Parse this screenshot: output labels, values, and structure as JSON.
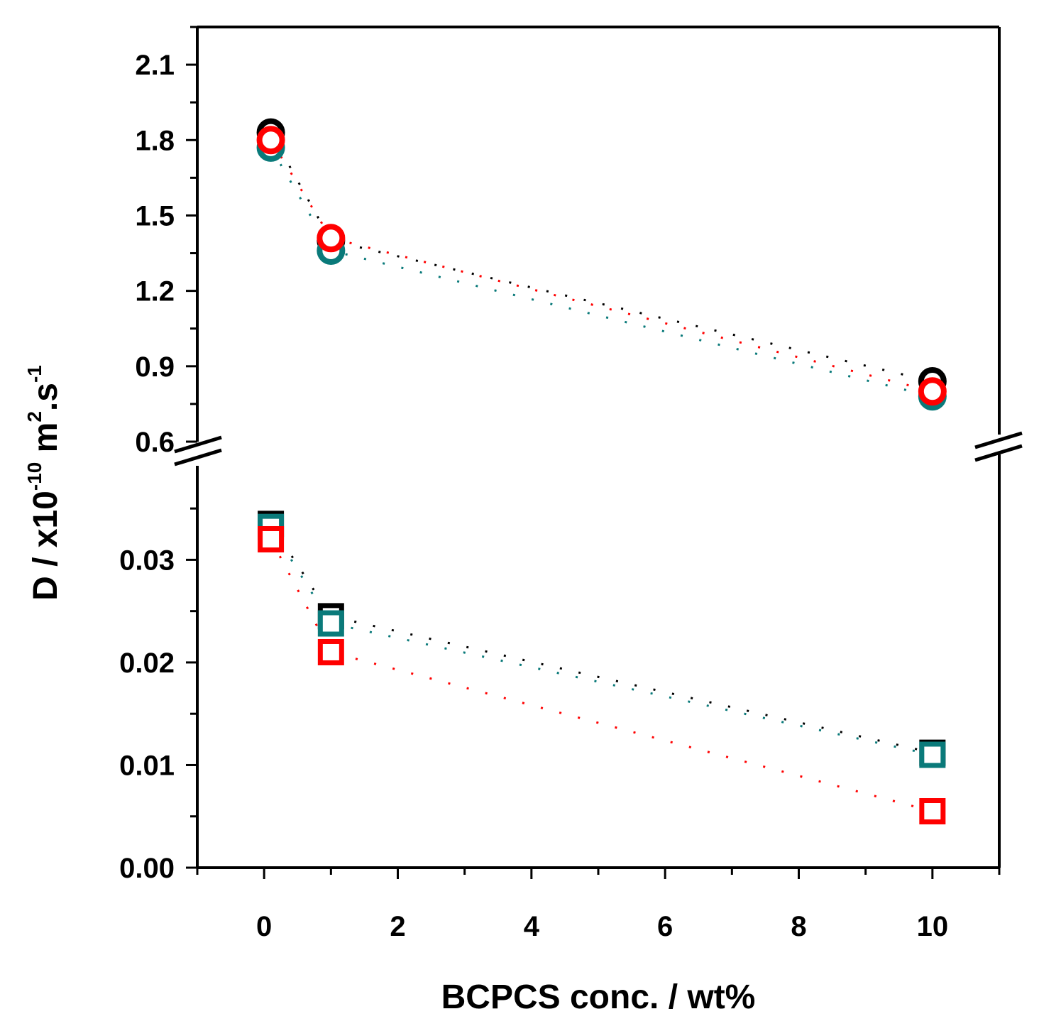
{
  "chart_data": {
    "type": "scatter",
    "xlabel": "BCPCS conc. / wt%",
    "ylabel": {
      "prefix": "D / x10",
      "exp1": "-10",
      "unit1": " m",
      "exp2": "2",
      "unit2": ".s",
      "exp3": "-1"
    },
    "xlim": [
      -1,
      11
    ],
    "x_ticks": [
      "0",
      "2",
      "4",
      "6",
      "8",
      "10"
    ],
    "x_tick_values": [
      0,
      2,
      4,
      6,
      8,
      10
    ],
    "y_break": true,
    "upper_ylim": [
      0.6,
      2.25
    ],
    "upper_ticks": [
      "0.6",
      "0.9",
      "1.2",
      "1.5",
      "1.8",
      "2.1"
    ],
    "upper_tick_values": [
      0.6,
      0.9,
      1.2,
      1.5,
      1.8,
      2.1
    ],
    "lower_ylim": [
      0.0,
      0.0375
    ],
    "lower_ticks": [
      "0.00",
      "0.01",
      "0.02",
      "0.03"
    ],
    "lower_tick_values": [
      0.0,
      0.01,
      0.02,
      0.03
    ],
    "x": [
      0.1,
      1,
      10
    ],
    "series": [
      {
        "name": "circle-black",
        "marker": "circle",
        "color": "#000000",
        "panel": "upper",
        "values": [
          1.83,
          1.4,
          0.84
        ]
      },
      {
        "name": "circle-teal",
        "marker": "circle",
        "color": "#0a7a7a",
        "panel": "upper",
        "values": [
          1.77,
          1.36,
          0.78
        ]
      },
      {
        "name": "circle-red",
        "marker": "circle",
        "color": "#ff0000",
        "panel": "upper",
        "values": [
          1.8,
          1.41,
          0.8
        ]
      },
      {
        "name": "square-black",
        "marker": "square",
        "color": "#000000",
        "panel": "lower",
        "values": [
          0.0335,
          0.0245,
          0.0112
        ]
      },
      {
        "name": "square-teal",
        "marker": "square",
        "color": "#0a7a7a",
        "panel": "lower",
        "values": [
          0.0332,
          0.0238,
          0.011
        ]
      },
      {
        "name": "square-red",
        "marker": "square",
        "color": "#ff0000",
        "panel": "lower",
        "values": [
          0.032,
          0.021,
          0.0055
        ]
      }
    ]
  }
}
